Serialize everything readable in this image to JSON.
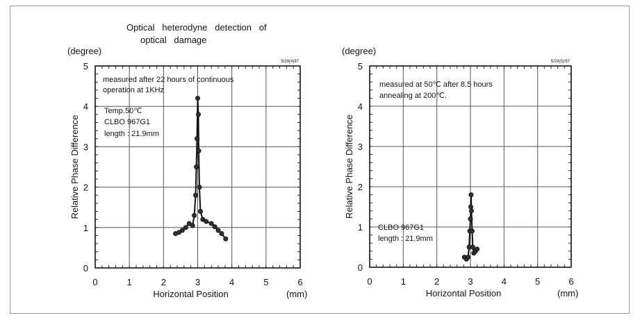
{
  "title_line1": "Optical   heterodyne   detection   of",
  "title_line2": "optical   damage",
  "chart_data": [
    {
      "type": "line",
      "ylabel": "Relative  Phase  Difference",
      "yunit": "(degree)",
      "xlabel": "Horizontal   Position",
      "xunit": "(mm)",
      "date_stamp": "5/29(4)97",
      "xlim": [
        0,
        6
      ],
      "ylim": [
        0,
        5
      ],
      "grid": true,
      "xticks": [
        "0",
        "1",
        "2",
        "3",
        "4",
        "5",
        "6"
      ],
      "yticks": [
        "0",
        "1",
        "2",
        "3",
        "4",
        "5"
      ],
      "annotations": [
        "measured after 22 hours of continuous",
        "operation at 1KHz",
        "Temp.50℃",
        "CLBO 967G1",
        "length : 21.9mm"
      ],
      "x": [
        2.35,
        2.45,
        2.55,
        2.65,
        2.75,
        2.85,
        2.9,
        2.94,
        2.96,
        2.98,
        3.0,
        3.02,
        3.03,
        3.05,
        3.08,
        3.15,
        3.25,
        3.4,
        3.5,
        3.6,
        3.7,
        3.82
      ],
      "y": [
        0.85,
        0.88,
        0.93,
        1.0,
        1.1,
        1.05,
        1.3,
        1.8,
        2.5,
        3.2,
        4.2,
        3.8,
        2.9,
        2.0,
        1.4,
        1.2,
        1.15,
        1.1,
        1.02,
        0.93,
        0.85,
        0.72
      ]
    },
    {
      "type": "line",
      "ylabel": "Relative  Phase  Difference",
      "yunit": "(degree)",
      "xlabel": "Horizontal   Position",
      "xunit": "(mm)",
      "date_stamp": "5/29(5)/97",
      "xlim": [
        0,
        6
      ],
      "ylim": [
        0,
        5
      ],
      "grid": true,
      "xticks": [
        "0",
        "1",
        "2",
        "3",
        "4",
        "5",
        "6"
      ],
      "yticks": [
        "0",
        "1",
        "2",
        "3",
        "4",
        "5"
      ],
      "annotations": [
        "measured at 50℃ after 8.5 hours",
        "annealing at 200℃.",
        "CLBO 967G1",
        "length : 21.9mm"
      ],
      "x": [
        2.82,
        2.88,
        2.93,
        2.96,
        2.98,
        3.0,
        3.01,
        3.02,
        3.03,
        3.05,
        3.07,
        3.1,
        3.15,
        3.2
      ],
      "y": [
        0.25,
        0.2,
        0.25,
        0.5,
        0.9,
        1.2,
        1.5,
        1.8,
        1.4,
        0.9,
        0.5,
        0.35,
        0.4,
        0.45
      ]
    }
  ]
}
